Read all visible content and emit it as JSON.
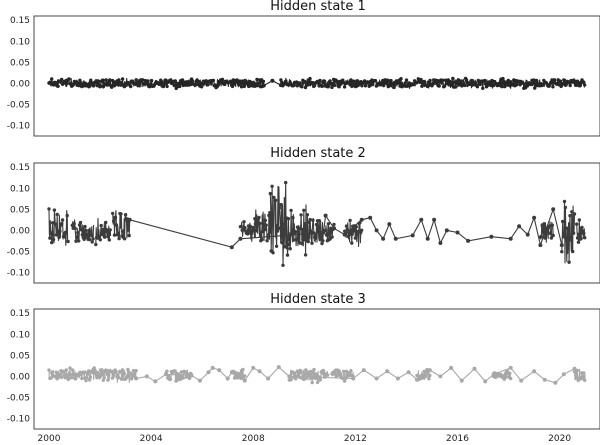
{
  "chart_data": [
    {
      "type": "line",
      "title": "Hidden state 1",
      "xlabel": "",
      "ylabel": "",
      "ylim": [
        -0.125,
        0.16
      ],
      "yticks": [
        0.15,
        0.1,
        0.05,
        0.0,
        -0.05,
        -0.1
      ],
      "ytick_labels": [
        "0.15",
        "0.10",
        "0.05",
        "0.00",
        "-0.05",
        "-0.10"
      ],
      "xlim": [
        "1999-06-01",
        "2021-08-01"
      ],
      "xticks": [],
      "grid": false,
      "color": "#262626",
      "series": [
        {
          "name": "",
          "style": "dense",
          "segments": [
            {
              "x_start": "2000-01-01",
              "x_end": "2008-06-01",
              "y_min": -0.012,
              "y_max": 0.012
            },
            {
              "x_start": "2009-02-01",
              "x_end": "2021-01-01",
              "y_min": -0.012,
              "y_max": 0.012
            }
          ],
          "x": [
            "2008-06-01",
            "2008-10-01",
            "2009-02-01"
          ],
          "y": [
            -0.005,
            0.006,
            -0.004
          ]
        }
      ]
    },
    {
      "type": "line",
      "title": "Hidden state 2",
      "xlabel": "",
      "ylabel": "",
      "ylim": [
        -0.125,
        0.16
      ],
      "yticks": [
        0.15,
        0.1,
        0.05,
        0.0,
        -0.05,
        -0.1
      ],
      "ytick_labels": [
        "0.15",
        "0.10",
        "0.05",
        "0.00",
        "-0.05",
        "-0.10"
      ],
      "xlim": [
        "1999-06-01",
        "2021-08-01"
      ],
      "xticks": [],
      "grid": false,
      "color": "#3c3c3c",
      "series": [
        {
          "name": "",
          "style": "dense",
          "segments": [
            {
              "x_start": "2000-01-01",
              "x_end": "2000-10-01",
              "y_min": -0.045,
              "y_max": 0.055
            },
            {
              "x_start": "2000-12-01",
              "x_end": "2001-10-01",
              "y_min": -0.04,
              "y_max": 0.035
            },
            {
              "x_start": "2001-11-01",
              "x_end": "2002-06-01",
              "y_min": -0.035,
              "y_max": 0.035
            },
            {
              "x_start": "2002-07-01",
              "x_end": "2003-03-01",
              "y_min": -0.035,
              "y_max": 0.055
            },
            {
              "x_start": "2007-07-01",
              "x_end": "2008-02-01",
              "y_min": -0.03,
              "y_max": 0.03
            },
            {
              "x_start": "2008-02-01",
              "x_end": "2008-09-01",
              "y_min": -0.05,
              "y_max": 0.06
            },
            {
              "x_start": "2008-09-01",
              "x_end": "2009-06-01",
              "y_min": -0.095,
              "y_max": 0.14
            },
            {
              "x_start": "2009-06-01",
              "x_end": "2010-02-01",
              "y_min": -0.06,
              "y_max": 0.07
            },
            {
              "x_start": "2010-02-01",
              "x_end": "2010-10-01",
              "y_min": -0.045,
              "y_max": 0.04
            },
            {
              "x_start": "2010-11-01",
              "x_end": "2011-03-01",
              "y_min": -0.035,
              "y_max": 0.03
            },
            {
              "x_start": "2011-08-01",
              "x_end": "2012-04-01",
              "y_min": -0.045,
              "y_max": 0.03
            },
            {
              "x_start": "2019-04-01",
              "x_end": "2019-10-01",
              "y_min": -0.03,
              "y_max": 0.03
            },
            {
              "x_start": "2020-02-01",
              "x_end": "2020-08-01",
              "y_min": -0.11,
              "y_max": 0.09
            },
            {
              "x_start": "2020-09-01",
              "x_end": "2021-01-01",
              "y_min": -0.03,
              "y_max": 0.025
            }
          ],
          "x": [
            "2003-03-01",
            "2007-03-01",
            "2007-07-01",
            "2010-10-01",
            "2010-11-01",
            "2011-03-01",
            "2011-08-01",
            "2012-04-01",
            "2012-08-01",
            "2012-11-01",
            "2013-02-01",
            "2013-05-01",
            "2013-08-01",
            "2014-04-01",
            "2014-08-01",
            "2014-11-01",
            "2015-02-01",
            "2015-05-01",
            "2015-08-01",
            "2016-01-01",
            "2016-06-01",
            "2017-05-01",
            "2018-02-01",
            "2018-06-01",
            "2018-10-01",
            "2019-01-01",
            "2019-04-01",
            "2019-10-01",
            "2020-02-01"
          ],
          "y": [
            0.025,
            -0.04,
            -0.02,
            -0.005,
            0.035,
            0.005,
            -0.01,
            0.025,
            0.03,
            0.0,
            -0.02,
            0.015,
            -0.02,
            -0.012,
            0.025,
            -0.02,
            0.025,
            -0.03,
            0.0,
            -0.005,
            -0.025,
            -0.015,
            -0.02,
            0.01,
            -0.01,
            0.03,
            -0.035,
            0.05,
            -0.035
          ]
        }
      ]
    },
    {
      "type": "line",
      "title": "Hidden state 3",
      "xlabel": "",
      "ylabel": "",
      "ylim": [
        -0.125,
        0.16
      ],
      "yticks": [
        0.15,
        0.1,
        0.05,
        0.0,
        -0.05,
        -0.1
      ],
      "ytick_labels": [
        "0.15",
        "0.10",
        "0.05",
        "0.00",
        "-0.05",
        "-0.10"
      ],
      "xlim": [
        "1999-06-01",
        "2021-08-01"
      ],
      "xticks": [
        "2000",
        "2004",
        "2008",
        "2012",
        "2016",
        "2020"
      ],
      "grid": false,
      "color": "#a8a8a8",
      "series": [
        {
          "name": "",
          "style": "dense",
          "segments": [
            {
              "x_start": "2000-01-01",
              "x_end": "2001-06-01",
              "y_min": -0.012,
              "y_max": 0.02
            },
            {
              "x_start": "2001-06-01",
              "x_end": "2003-06-01",
              "y_min": -0.015,
              "y_max": 0.022
            },
            {
              "x_start": "2004-08-01",
              "x_end": "2005-08-01",
              "y_min": -0.012,
              "y_max": 0.018
            },
            {
              "x_start": "2007-03-01",
              "x_end": "2007-09-01",
              "y_min": -0.012,
              "y_max": 0.018
            },
            {
              "x_start": "2009-06-01",
              "x_end": "2010-12-01",
              "y_min": -0.015,
              "y_max": 0.022
            },
            {
              "x_start": "2011-02-01",
              "x_end": "2011-12-01",
              "y_min": -0.012,
              "y_max": 0.02
            },
            {
              "x_start": "2014-06-01",
              "x_end": "2014-12-01",
              "y_min": -0.012,
              "y_max": 0.018
            },
            {
              "x_start": "2017-06-01",
              "x_end": "2018-02-01",
              "y_min": -0.012,
              "y_max": 0.018
            },
            {
              "x_start": "2020-08-01",
              "x_end": "2021-01-01",
              "y_min": -0.015,
              "y_max": 0.02
            }
          ],
          "x": [
            "2003-06-01",
            "2003-11-01",
            "2004-03-01",
            "2004-08-01",
            "2005-08-01",
            "2005-12-01",
            "2006-04-01",
            "2006-06-01",
            "2006-09-01",
            "2007-01-01",
            "2007-03-01",
            "2007-09-01",
            "2008-01-01",
            "2008-04-01",
            "2008-08-01",
            "2009-01-01",
            "2009-06-01",
            "2011-12-01",
            "2012-05-01",
            "2012-11-01",
            "2013-04-01",
            "2013-09-01",
            "2014-02-01",
            "2014-06-01",
            "2014-12-01",
            "2015-05-01",
            "2015-10-01",
            "2016-03-01",
            "2016-09-01",
            "2017-02-01",
            "2017-06-01",
            "2018-02-01",
            "2018-07-01",
            "2019-01-01",
            "2019-06-01",
            "2019-11-01",
            "2020-03-01",
            "2020-08-01"
          ],
          "y": [
            -0.005,
            0.0,
            -0.012,
            0.005,
            0.002,
            -0.01,
            0.01,
            0.02,
            0.015,
            -0.005,
            0.01,
            -0.01,
            0.02,
            0.012,
            -0.005,
            0.022,
            0.0,
            -0.005,
            0.015,
            -0.005,
            0.012,
            -0.005,
            0.01,
            -0.008,
            0.015,
            0.0,
            0.02,
            -0.01,
            0.018,
            -0.012,
            0.005,
            0.02,
            -0.01,
            0.012,
            -0.008,
            -0.015,
            0.005,
            0.018
          ]
        }
      ]
    }
  ]
}
